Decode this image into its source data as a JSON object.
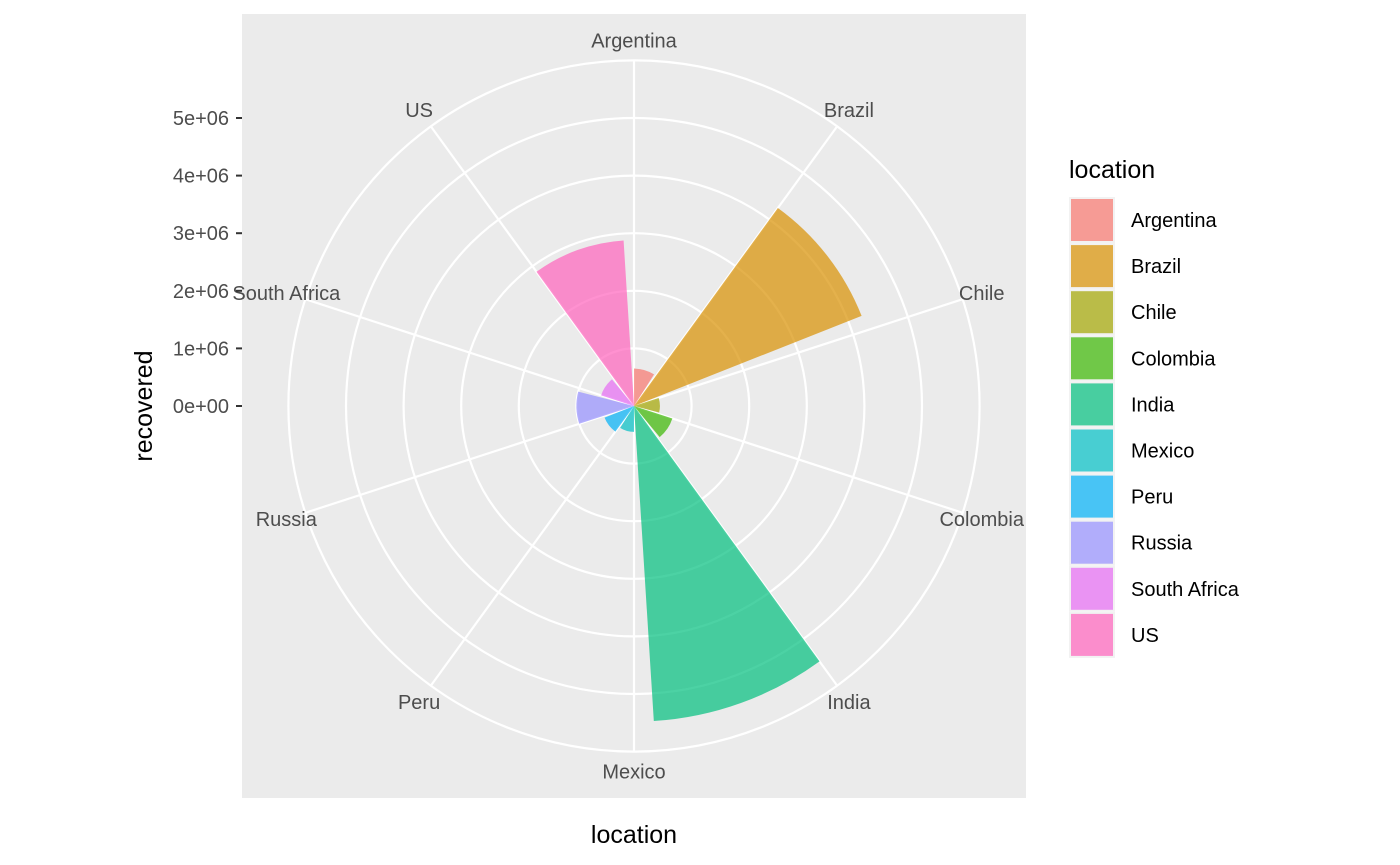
{
  "chart_data": {
    "type": "bar",
    "coord": "polar",
    "xlabel": "location",
    "ylabel": "recovered",
    "categories": [
      "Argentina",
      "Brazil",
      "Chile",
      "Colombia",
      "India",
      "Mexico",
      "Peru",
      "Russia",
      "South Africa",
      "US"
    ],
    "values": [
      650000,
      4250000,
      450000,
      700000,
      5480000,
      450000,
      550000,
      1000000,
      600000,
      2880000
    ],
    "colors": [
      "#F8766D",
      "#D89000",
      "#A3A500",
      "#39B600",
      "#00BF7D",
      "#00BFC4",
      "#00B0F6",
      "#9590FF",
      "#E76BF3",
      "#FF62BC"
    ],
    "yticks": [
      0,
      1000000,
      2000000,
      3000000,
      4000000,
      5000000
    ],
    "ytick_labels": [
      "0e+00",
      "1e+06",
      "2e+06",
      "3e+06",
      "4e+06",
      "5e+06"
    ],
    "ylim": [
      0,
      6000000
    ],
    "legend": {
      "title": "location",
      "position": "right"
    },
    "grid": true
  }
}
